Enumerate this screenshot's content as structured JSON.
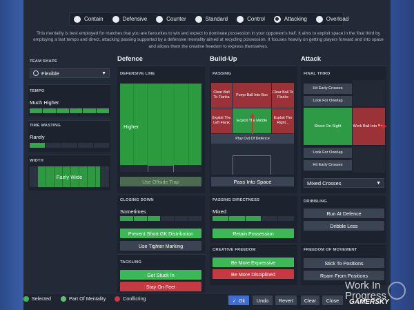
{
  "mentalities": [
    {
      "label": "Contain",
      "selected": false
    },
    {
      "label": "Defensive",
      "selected": false
    },
    {
      "label": "Counter",
      "selected": false
    },
    {
      "label": "Standard",
      "selected": false
    },
    {
      "label": "Control",
      "selected": false
    },
    {
      "label": "Attacking",
      "selected": true
    },
    {
      "label": "Overload",
      "selected": false
    }
  ],
  "description": "This mentality is best employed for matches that you are favourites to win and expect to dominate possession in your opponent's half. It aims to exploit space in the final third by employing a fast tempo and direct, attacking passing supported by a defensive mentality aimed at recycling possession. It focuses heavily on getting players forward and into space and allows them the creative freedom to express themselves.",
  "team": {
    "shape_label": "TEAM SHAPE",
    "shape_value": "Flexible",
    "tempo_label": "TEMPO",
    "tempo_value": "Much Higher",
    "tempo_bar": {
      "segments": 6,
      "filled": 6
    },
    "timewasting_label": "TIME WASTING",
    "timewasting_value": "Rarely",
    "timewasting_bar": {
      "segments": 5,
      "filled": 1
    },
    "width_label": "WIDTH",
    "width_value": "Fairly Wide"
  },
  "defence": {
    "title": "Defence",
    "line_label": "DEFENSIVE LINE",
    "line_value": "Higher",
    "offside_trap": "Use Offside Trap",
    "closing_label": "CLOSING DOWN",
    "closing_value": "Sometimes",
    "closing_bar": {
      "segments": 6,
      "filled": 3
    },
    "btn_gk": "Prevent Short GK Distribution",
    "btn_marking": "Use Tighter Marking",
    "tackling_label": "TACKLING",
    "btn_stuck": "Get Stuck In",
    "btn_feet": "Stay On Feet"
  },
  "buildup": {
    "title": "Build-Up",
    "passing_label": "PASSING",
    "cells": {
      "clear_left": "Clear Ball To Flanks",
      "pump": "Pump Ball Into Box",
      "clear_right": "Clear Ball To Flanks",
      "exploit_left": "Exploit The Left Flank",
      "exploit_middle": "Exploit The Middle",
      "exploit_right": "Exploit The Right...",
      "play_out": "Play Out Of Defence"
    },
    "btn_space": "Pass Into Space",
    "directness_label": "PASSING DIRECTNESS",
    "directness_value": "Mixed",
    "directness_bar": {
      "segments": 5,
      "filled": 3
    },
    "btn_retain": "Retain Possession",
    "creative_label": "CREATIVE FREEDOM",
    "btn_expressive": "Be More Expressive",
    "btn_disciplined": "Be More Disciplined"
  },
  "attack": {
    "title": "Attack",
    "final_label": "FINAL THIRD",
    "btn_early": "Hit Early Crosses",
    "btn_overlap1": "Look For Overlap",
    "btn_shoot": "Shoot On Sight",
    "btn_workball": "Work Ball Into Box",
    "btn_overlap2": "Look For Overlap",
    "btn_early2": "Hit Early Crosses",
    "crosses_value": "Mixed Crosses",
    "dribbling_label": "DRIBBLING",
    "btn_run": "Run At Defence",
    "btn_dribble": "Dribble Less",
    "freedom_label": "FREEDOM OF MOVEMENT",
    "btn_stick": "Stick To Positions",
    "btn_roam": "Roam From Positions"
  },
  "legend": {
    "selected": "Selected",
    "part": "Part Of Mentality",
    "conflicting": "Conflicting"
  },
  "footer": {
    "ok": "Ok",
    "undo": "Undo",
    "revert": "Revert",
    "clear": "Clear",
    "close": "Close"
  },
  "watermark": {
    "line1": "Work In",
    "line2": "Progress",
    "brand": "GAMERSKY"
  },
  "colors": {
    "selected": "#3cb857",
    "part": "#5fbf6f",
    "conflicting": "#c63941"
  }
}
